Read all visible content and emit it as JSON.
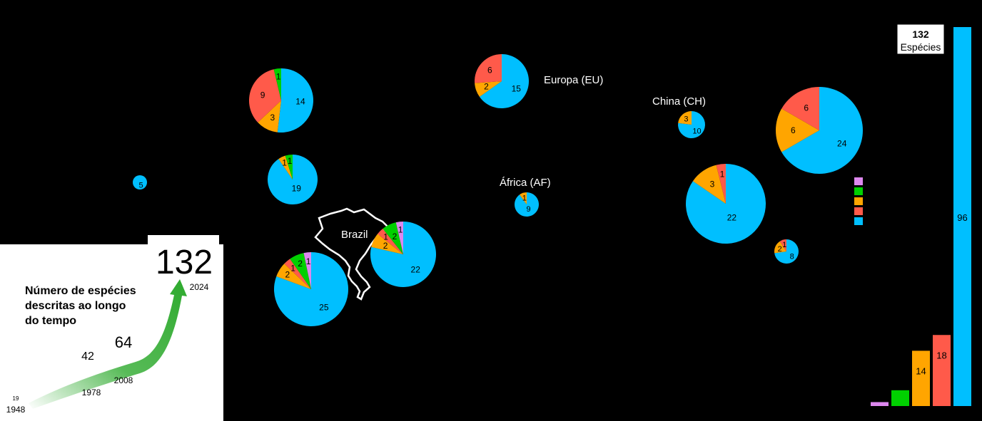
{
  "colors": {
    "blue": "#00BFFF",
    "red": "#FF5A4A",
    "orange": "#FFA500",
    "green": "#00D000",
    "pink": "#DD88EE",
    "background": "#000000",
    "arrow": "#2EAA2E"
  },
  "region_labels": [
    {
      "id": "eu",
      "text": "Europa (EU)"
    },
    {
      "id": "ch",
      "text": "China (CH)"
    },
    {
      "id": "af",
      "text": "África (AF)"
    },
    {
      "id": "br",
      "text": "Brazil"
    }
  ],
  "total_box": {
    "number": "132",
    "label": "Espécies"
  },
  "timeline": {
    "title_lines": [
      "Número de espécies",
      "descritas ao longo",
      "do tempo"
    ],
    "big_value": "132",
    "points": [
      {
        "count": "19",
        "year": "1948"
      },
      {
        "count": "42",
        "year": "1978"
      },
      {
        "count": "64",
        "year": "2008"
      },
      {
        "count": "132",
        "year": "2024"
      }
    ]
  },
  "chart_data": [
    {
      "type": "pie",
      "description_note": "",
      "pies": [
        {
          "id": "pie-north-america-ne",
          "slices": [
            {
              "color": "blue",
              "value": 14
            },
            {
              "color": "orange",
              "value": 3
            },
            {
              "color": "red",
              "value": 9
            },
            {
              "color": "green",
              "value": 1
            }
          ]
        },
        {
          "id": "pie-north-america-west",
          "slices": [
            {
              "color": "blue",
              "value": 5
            }
          ]
        },
        {
          "id": "pie-north-america-central",
          "slices": [
            {
              "color": "blue",
              "value": 19
            },
            {
              "color": "orange",
              "value": 1
            },
            {
              "color": "green",
              "value": 1
            }
          ]
        },
        {
          "id": "pie-south-america",
          "slices": [
            {
              "color": "blue",
              "value": 25
            },
            {
              "color": "orange",
              "value": 2
            },
            {
              "color": "red",
              "value": 1
            },
            {
              "color": "green",
              "value": 2
            },
            {
              "color": "pink",
              "value": 1
            }
          ]
        },
        {
          "id": "pie-brazil",
          "slices": [
            {
              "color": "blue",
              "value": 22
            },
            {
              "color": "orange",
              "value": 2
            },
            {
              "color": "red",
              "value": 1
            },
            {
              "color": "green",
              "value": 2
            },
            {
              "color": "pink",
              "value": 1
            }
          ]
        },
        {
          "id": "pie-europa",
          "slices": [
            {
              "color": "blue",
              "value": 15
            },
            {
              "color": "orange",
              "value": 2
            },
            {
              "color": "red",
              "value": 6
            }
          ]
        },
        {
          "id": "pie-africa",
          "slices": [
            {
              "color": "blue",
              "value": 9
            },
            {
              "color": "orange",
              "value": 1
            }
          ]
        },
        {
          "id": "pie-china",
          "slices": [
            {
              "color": "blue",
              "value": 10
            },
            {
              "color": "orange",
              "value": 3
            }
          ]
        },
        {
          "id": "pie-asia-east",
          "slices": [
            {
              "color": "blue",
              "value": 24
            },
            {
              "color": "orange",
              "value": 6
            },
            {
              "color": "red",
              "value": 6
            }
          ]
        },
        {
          "id": "pie-asia-south",
          "slices": [
            {
              "color": "blue",
              "value": 22
            },
            {
              "color": "orange",
              "value": 3
            },
            {
              "color": "red",
              "value": 1
            }
          ]
        },
        {
          "id": "pie-oceania",
          "slices": [
            {
              "color": "blue",
              "value": 8
            },
            {
              "color": "orange",
              "value": 2
            },
            {
              "color": "red",
              "value": 1
            }
          ]
        }
      ]
    },
    {
      "type": "bar",
      "legend_colors": [
        "pink",
        "green",
        "orange",
        "red",
        "blue"
      ],
      "series": [
        {
          "color": "pink",
          "values": [
            1
          ]
        },
        {
          "color": "green",
          "values": [
            4
          ]
        },
        {
          "color": "orange",
          "values": [
            14
          ]
        },
        {
          "color": "red",
          "values": [
            18
          ]
        },
        {
          "color": "blue",
          "values": [
            96
          ]
        }
      ],
      "data_labels": [
        "",
        "",
        "14",
        "18",
        "96"
      ]
    },
    {
      "type": "line",
      "x": [
        1948,
        1978,
        2008,
        2024
      ],
      "y": [
        19,
        42,
        64,
        132
      ]
    }
  ]
}
